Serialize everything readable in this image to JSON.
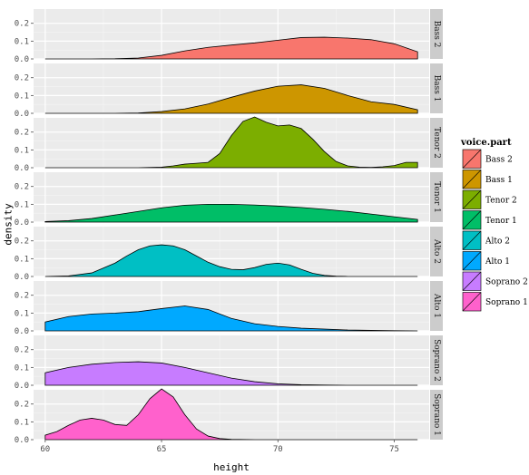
{
  "chart_data": {
    "type": "area",
    "subtype": "density-facet",
    "title": "",
    "xlabel": "height",
    "ylabel": "density",
    "xlim": [
      59.5,
      76.5
    ],
    "ylim": [
      0,
      0.28
    ],
    "xticks": [
      60,
      65,
      70,
      75
    ],
    "yticks": [
      0.0,
      0.1,
      0.2
    ],
    "ytick_labels": [
      "0.0",
      "0.1",
      "0.2"
    ],
    "grid": true,
    "legend": {
      "title": "voice.part",
      "placement": "right"
    },
    "series": [
      {
        "name": "Bass 2",
        "color": "#F8766D",
        "x": [
          60,
          61,
          62,
          63,
          64,
          65,
          66,
          67,
          68,
          69,
          70,
          71,
          72,
          73,
          74,
          75,
          76
        ],
        "y": [
          0.0,
          0.0,
          0.0,
          0.001,
          0.005,
          0.02,
          0.045,
          0.065,
          0.078,
          0.09,
          0.105,
          0.12,
          0.122,
          0.117,
          0.108,
          0.085,
          0.04
        ]
      },
      {
        "name": "Bass 1",
        "color": "#CD9600",
        "x": [
          60,
          61,
          62,
          63,
          64,
          65,
          66,
          67,
          68,
          69,
          70,
          71,
          72,
          73,
          74,
          75,
          76
        ],
        "y": [
          0.0,
          0.0,
          0.0,
          0.0,
          0.002,
          0.01,
          0.025,
          0.052,
          0.09,
          0.125,
          0.152,
          0.16,
          0.14,
          0.1,
          0.065,
          0.05,
          0.02
        ]
      },
      {
        "name": "Tenor 2",
        "color": "#7CAE00",
        "x": [
          60,
          61,
          62,
          63,
          64,
          65,
          65.5,
          66,
          66.5,
          67,
          67.5,
          68,
          68.5,
          69,
          69.5,
          70,
          70.5,
          71,
          71.5,
          72,
          72.5,
          73,
          73.5,
          74,
          74.5,
          75,
          75.5,
          76
        ],
        "y": [
          0.0,
          0.0,
          0.0,
          0.0,
          0.0,
          0.003,
          0.01,
          0.02,
          0.025,
          0.03,
          0.08,
          0.18,
          0.26,
          0.285,
          0.255,
          0.235,
          0.24,
          0.22,
          0.16,
          0.09,
          0.035,
          0.01,
          0.003,
          0.002,
          0.005,
          0.012,
          0.03,
          0.03
        ]
      },
      {
        "name": "Tenor 1",
        "color": "#00BE67",
        "x": [
          60,
          61,
          62,
          63,
          64,
          65,
          66,
          67,
          68,
          69,
          70,
          71,
          72,
          73,
          74,
          75,
          76
        ],
        "y": [
          0.003,
          0.008,
          0.02,
          0.04,
          0.06,
          0.08,
          0.095,
          0.1,
          0.1,
          0.096,
          0.09,
          0.082,
          0.072,
          0.06,
          0.045,
          0.03,
          0.015
        ]
      },
      {
        "name": "Alto 2",
        "color": "#00BFC4",
        "x": [
          60,
          61,
          62,
          63,
          63.5,
          64,
          64.5,
          65,
          65.5,
          66,
          66.5,
          67,
          67.5,
          68,
          68.5,
          69,
          69.5,
          70,
          70.5,
          71,
          71.5,
          72,
          72.5,
          73,
          74,
          75,
          76
        ],
        "y": [
          0.0,
          0.003,
          0.02,
          0.075,
          0.115,
          0.15,
          0.172,
          0.178,
          0.172,
          0.15,
          0.115,
          0.08,
          0.055,
          0.04,
          0.038,
          0.05,
          0.068,
          0.075,
          0.065,
          0.04,
          0.018,
          0.006,
          0.002,
          0.0,
          0.0,
          0.0,
          0.0
        ]
      },
      {
        "name": "Alto 1",
        "color": "#00A9FF",
        "x": [
          60,
          61,
          62,
          63,
          64,
          65,
          66,
          67,
          68,
          69,
          70,
          71,
          72,
          73,
          74,
          75,
          76
        ],
        "y": [
          0.05,
          0.08,
          0.095,
          0.1,
          0.108,
          0.125,
          0.14,
          0.12,
          0.07,
          0.04,
          0.025,
          0.015,
          0.01,
          0.005,
          0.003,
          0.001,
          0.0
        ]
      },
      {
        "name": "Soprano 2",
        "color": "#C77CFF",
        "x": [
          60,
          61,
          62,
          63,
          64,
          65,
          66,
          67,
          68,
          69,
          70,
          71,
          72,
          73,
          74,
          75,
          76
        ],
        "y": [
          0.07,
          0.1,
          0.118,
          0.128,
          0.132,
          0.125,
          0.1,
          0.07,
          0.04,
          0.02,
          0.008,
          0.003,
          0.001,
          0.0,
          0.0,
          0.0,
          0.0
        ]
      },
      {
        "name": "Soprano 1",
        "color": "#FF61CC",
        "x": [
          60,
          60.5,
          61,
          61.5,
          62,
          62.5,
          63,
          63.5,
          64,
          64.5,
          65,
          65.5,
          66,
          66.5,
          67,
          67.5,
          68,
          69,
          70,
          71,
          72,
          73,
          74,
          75,
          76
        ],
        "y": [
          0.025,
          0.045,
          0.08,
          0.11,
          0.12,
          0.11,
          0.085,
          0.08,
          0.14,
          0.23,
          0.285,
          0.24,
          0.14,
          0.06,
          0.02,
          0.006,
          0.002,
          0.0,
          0.0,
          0.0,
          0.0,
          0.0,
          0.0,
          0.0,
          0.0
        ]
      }
    ]
  }
}
